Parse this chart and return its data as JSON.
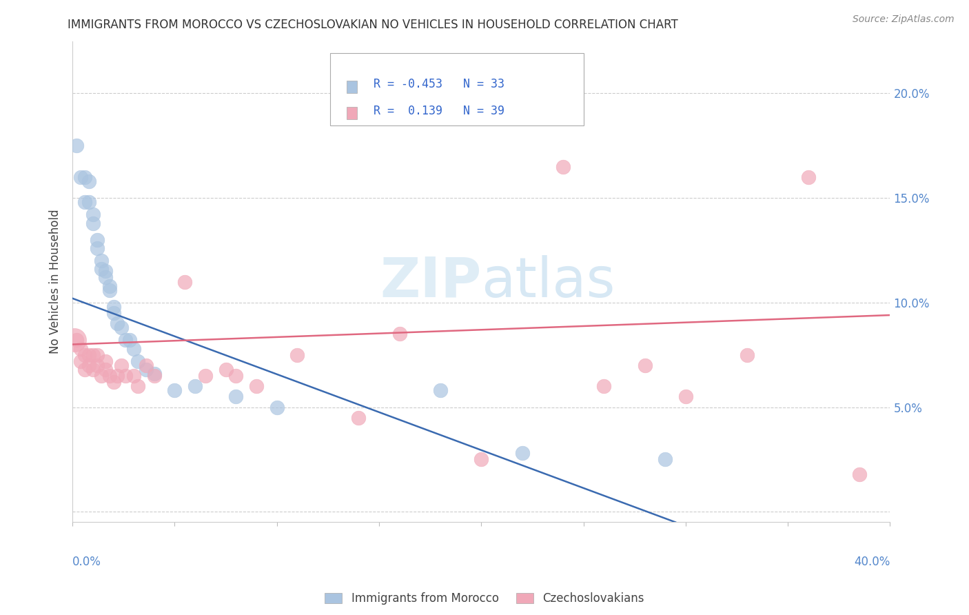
{
  "title": "IMMIGRANTS FROM MOROCCO VS CZECHOSLOVAKIAN NO VEHICLES IN HOUSEHOLD CORRELATION CHART",
  "source": "Source: ZipAtlas.com",
  "ylabel": "No Vehicles in Household",
  "yticks": [
    0.0,
    0.05,
    0.1,
    0.15,
    0.2
  ],
  "xlim": [
    0.0,
    0.4
  ],
  "ylim": [
    -0.005,
    0.225
  ],
  "legend_r1": "R = -0.453",
  "legend_n1": "N = 33",
  "legend_r2": "R =  0.139",
  "legend_n2": "N = 39",
  "blue_color": "#aac4e0",
  "pink_color": "#f0a8b8",
  "blue_line_color": "#3a6ab0",
  "pink_line_color": "#e06880",
  "blue_x": [
    0.002,
    0.004,
    0.006,
    0.006,
    0.008,
    0.008,
    0.01,
    0.01,
    0.012,
    0.012,
    0.014,
    0.014,
    0.016,
    0.016,
    0.018,
    0.018,
    0.02,
    0.02,
    0.022,
    0.024,
    0.026,
    0.028,
    0.03,
    0.032,
    0.036,
    0.04,
    0.05,
    0.06,
    0.08,
    0.1,
    0.18,
    0.22,
    0.29
  ],
  "blue_y": [
    0.175,
    0.16,
    0.16,
    0.148,
    0.158,
    0.148,
    0.142,
    0.138,
    0.13,
    0.126,
    0.12,
    0.116,
    0.115,
    0.112,
    0.108,
    0.106,
    0.098,
    0.095,
    0.09,
    0.088,
    0.082,
    0.082,
    0.078,
    0.072,
    0.068,
    0.066,
    0.058,
    0.06,
    0.055,
    0.05,
    0.058,
    0.028,
    0.025
  ],
  "pink_x": [
    0.002,
    0.004,
    0.004,
    0.006,
    0.006,
    0.008,
    0.008,
    0.01,
    0.01,
    0.012,
    0.012,
    0.014,
    0.016,
    0.016,
    0.018,
    0.02,
    0.022,
    0.024,
    0.026,
    0.03,
    0.032,
    0.036,
    0.04,
    0.055,
    0.065,
    0.075,
    0.08,
    0.09,
    0.11,
    0.14,
    0.16,
    0.2,
    0.24,
    0.26,
    0.28,
    0.3,
    0.33,
    0.36,
    0.385
  ],
  "pink_y": [
    0.082,
    0.078,
    0.072,
    0.075,
    0.068,
    0.075,
    0.07,
    0.075,
    0.068,
    0.075,
    0.07,
    0.065,
    0.072,
    0.068,
    0.065,
    0.062,
    0.065,
    0.07,
    0.065,
    0.065,
    0.06,
    0.07,
    0.065,
    0.11,
    0.065,
    0.068,
    0.065,
    0.06,
    0.075,
    0.045,
    0.085,
    0.025,
    0.165,
    0.06,
    0.07,
    0.055,
    0.075,
    0.16,
    0.018
  ],
  "blue_line_x0": 0.0,
  "blue_line_y0": 0.102,
  "blue_line_x1": 0.295,
  "blue_line_y1": -0.005,
  "pink_line_x0": 0.0,
  "pink_line_y0": 0.08,
  "pink_line_x1": 0.4,
  "pink_line_y1": 0.094
}
